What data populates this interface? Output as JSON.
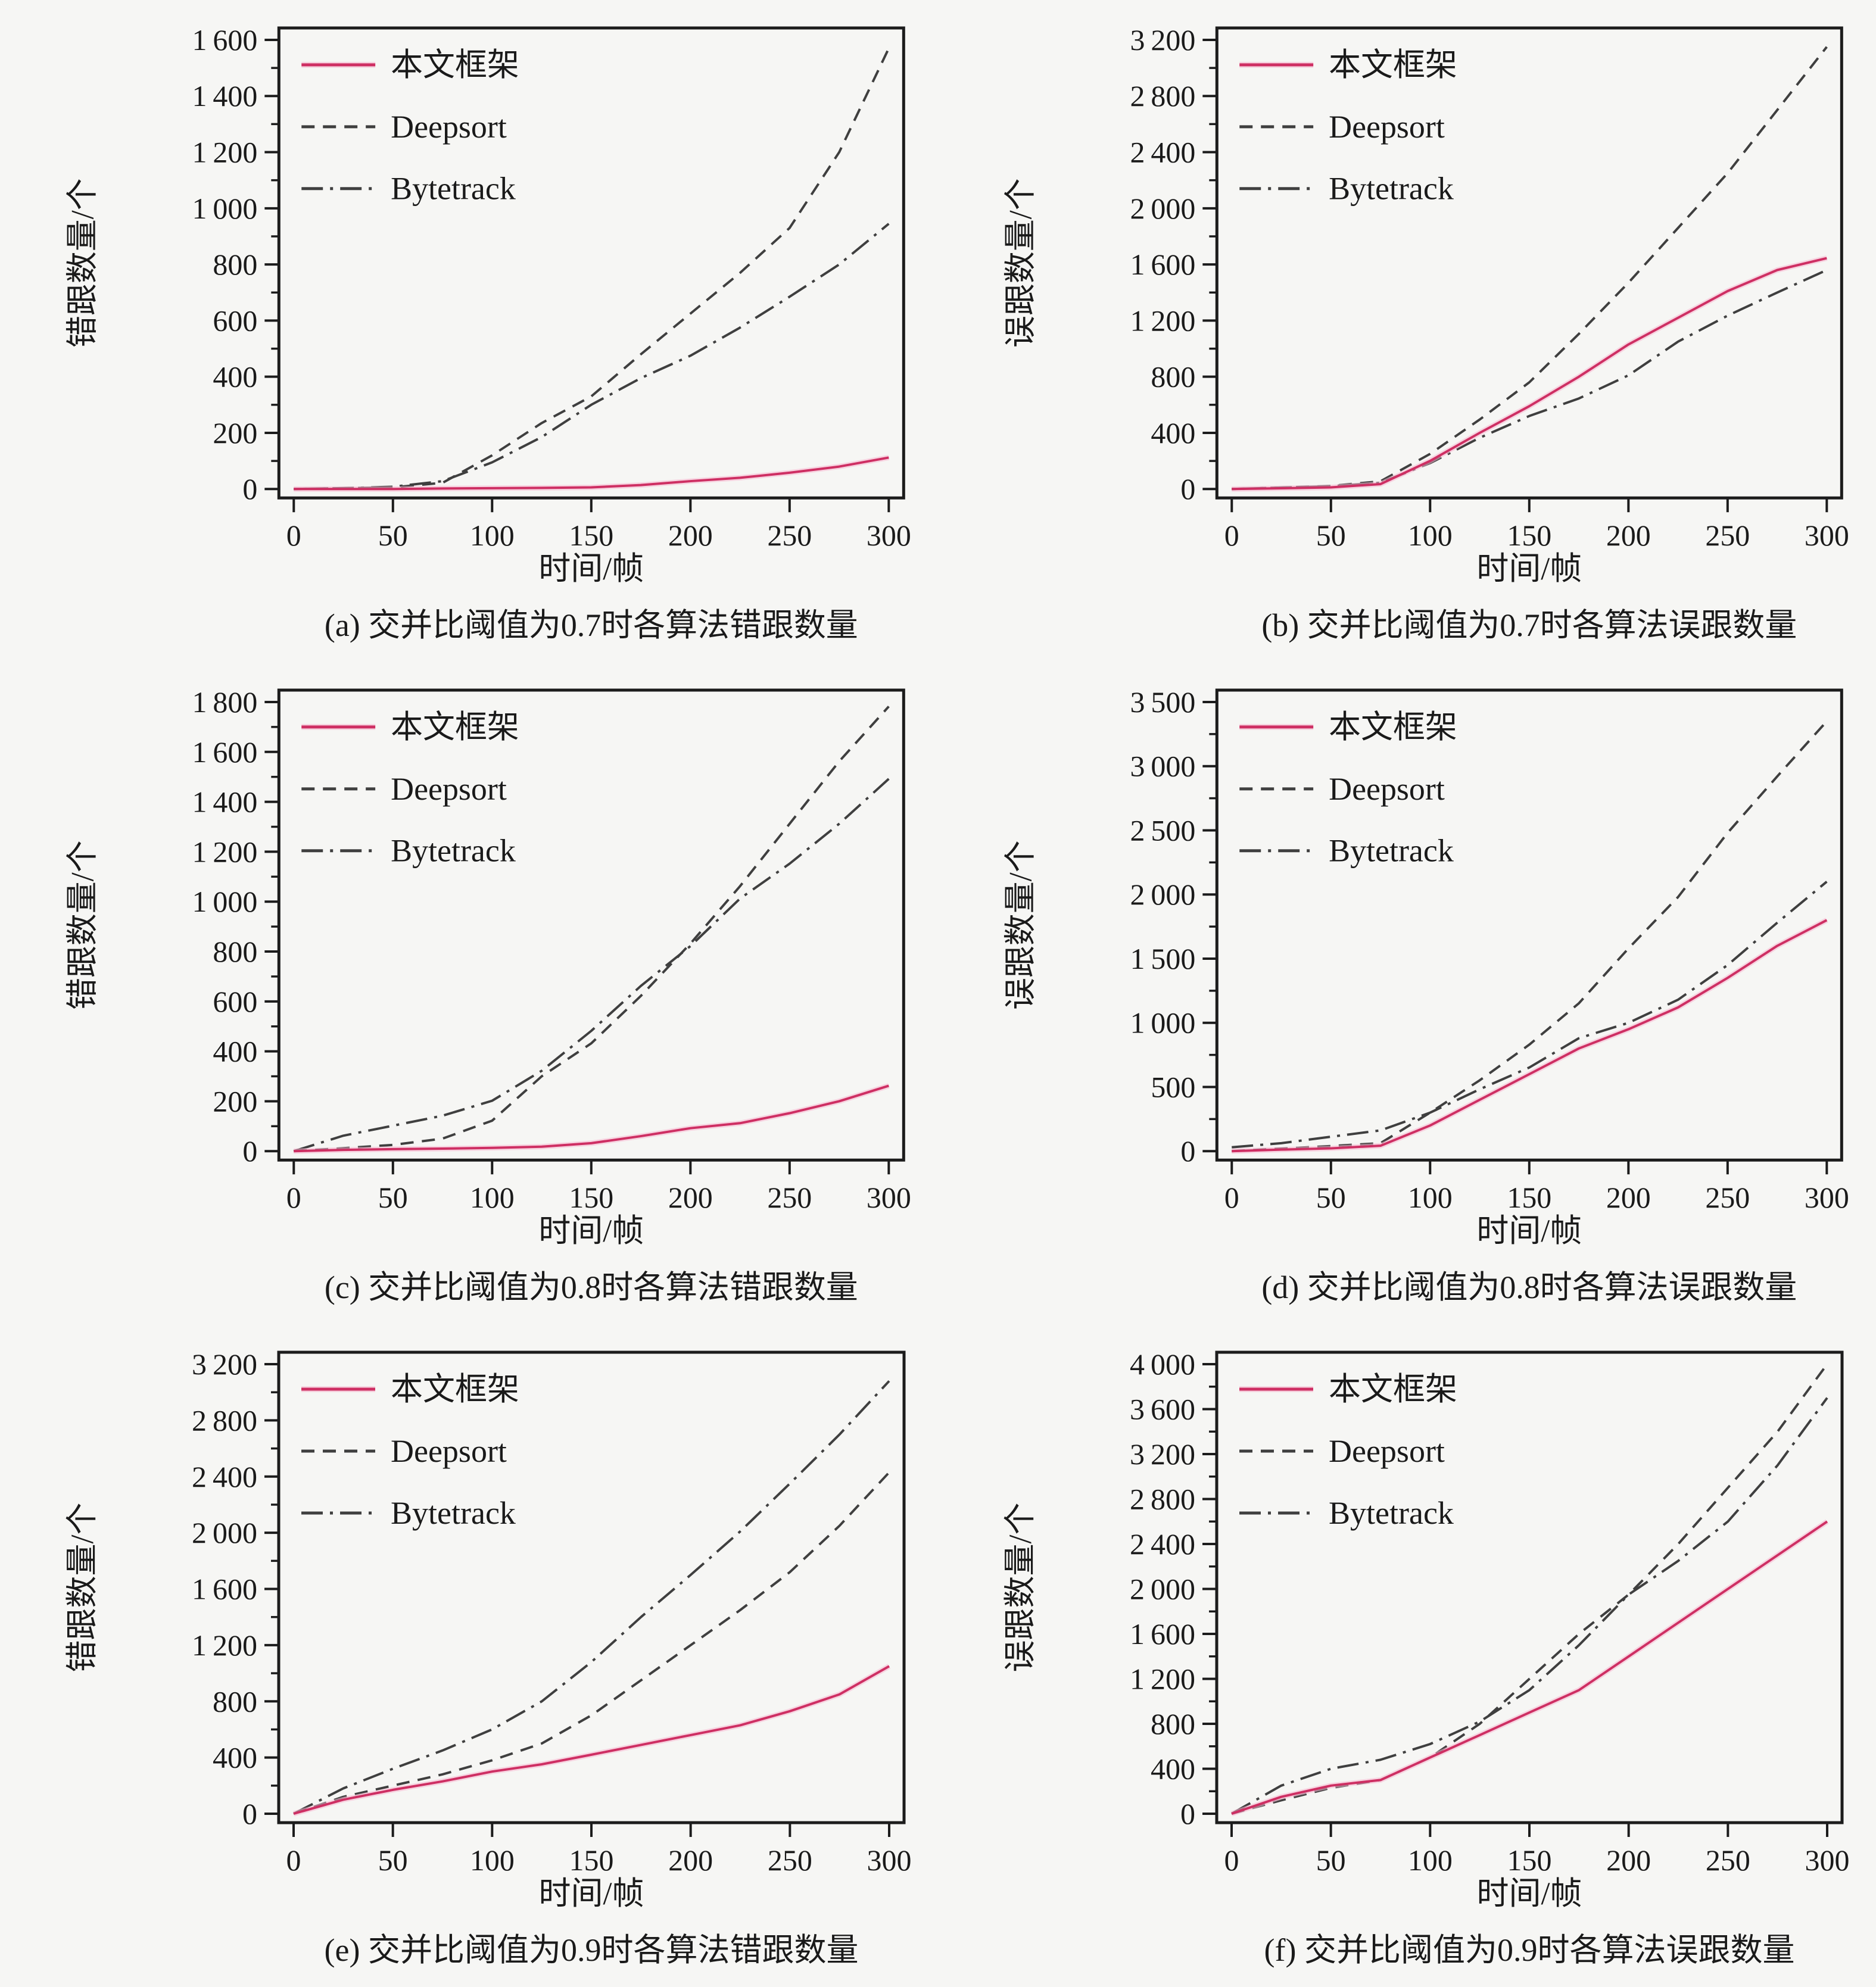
{
  "colors": {
    "background": "#f6f6f4",
    "axis": "#1c1c1c",
    "ours_line": "#ce2f63",
    "ours_halo": "#f7b7cf",
    "baseline_line": "#3f3f3f"
  },
  "chart_data": [
    {
      "id": "a",
      "type": "line",
      "caption": "(a) 交并比阈值为0.7时各算法错跟数量",
      "xlabel": "时间/帧",
      "ylabel": "错跟数量/个",
      "xlim": [
        0,
        300
      ],
      "xtick_step": 50,
      "ylim": [
        0,
        1600
      ],
      "ytick_step": 200,
      "grid": false,
      "legend_position": "top-left",
      "x": [
        0,
        25,
        50,
        75,
        100,
        125,
        150,
        175,
        200,
        225,
        250,
        275,
        300
      ],
      "series": [
        {
          "name": "本文框架",
          "style": "solid",
          "role": "ours",
          "values": [
            0,
            0,
            0,
            2,
            3,
            4,
            6,
            14,
            28,
            40,
            58,
            80,
            112
          ]
        },
        {
          "name": "Deepsort",
          "style": "dashed",
          "role": "baseline",
          "values": [
            0,
            3,
            6,
            22,
            120,
            235,
            330,
            480,
            625,
            770,
            930,
            1200,
            1570
          ]
        },
        {
          "name": "Bytetrack",
          "style": "dashdot",
          "role": "baseline",
          "values": [
            0,
            3,
            8,
            28,
            95,
            185,
            300,
            395,
            475,
            575,
            685,
            800,
            945
          ]
        }
      ]
    },
    {
      "id": "b",
      "type": "line",
      "caption": "(b) 交并比阈值为0.7时各算法误跟数量",
      "xlabel": "时间/帧",
      "ylabel": "误跟数量/个",
      "xlim": [
        0,
        300
      ],
      "xtick_step": 50,
      "ylim": [
        0,
        3200
      ],
      "ytick_step": 400,
      "grid": false,
      "legend_position": "top-left",
      "x": [
        0,
        25,
        50,
        75,
        100,
        125,
        150,
        175,
        200,
        225,
        250,
        275,
        300
      ],
      "series": [
        {
          "name": "本文框架",
          "style": "solid",
          "role": "ours",
          "values": [
            0,
            5,
            12,
            35,
            200,
            400,
            590,
            800,
            1030,
            1220,
            1410,
            1560,
            1645
          ]
        },
        {
          "name": "Deepsort",
          "style": "dashed",
          "role": "baseline",
          "values": [
            0,
            10,
            22,
            55,
            250,
            495,
            760,
            1105,
            1470,
            1860,
            2250,
            2700,
            3150
          ]
        },
        {
          "name": "Bytetrack",
          "style": "dashdot",
          "role": "baseline",
          "values": [
            0,
            10,
            20,
            45,
            185,
            365,
            520,
            645,
            810,
            1050,
            1235,
            1400,
            1560
          ]
        }
      ]
    },
    {
      "id": "c",
      "type": "line",
      "caption": "(c) 交并比阈值为0.8时各算法错跟数量",
      "xlabel": "时间/帧",
      "ylabel": "错跟数量/个",
      "xlim": [
        0,
        300
      ],
      "xtick_step": 50,
      "ylim": [
        0,
        1800
      ],
      "ytick_step": 200,
      "grid": false,
      "legend_position": "top-left",
      "x": [
        0,
        25,
        50,
        75,
        100,
        125,
        150,
        175,
        200,
        225,
        250,
        275,
        300
      ],
      "series": [
        {
          "name": "本文框架",
          "style": "solid",
          "role": "ours",
          "values": [
            0,
            5,
            8,
            10,
            13,
            18,
            32,
            60,
            92,
            112,
            152,
            200,
            262
          ]
        },
        {
          "name": "Deepsort",
          "style": "dashed",
          "role": "baseline",
          "values": [
            0,
            12,
            25,
            50,
            122,
            300,
            432,
            622,
            832,
            1062,
            1312,
            1562,
            1782
          ]
        },
        {
          "name": "Bytetrack",
          "style": "dashdot",
          "role": "baseline",
          "values": [
            0,
            62,
            102,
            142,
            202,
            322,
            482,
            662,
            822,
            1012,
            1152,
            1312,
            1492
          ]
        }
      ]
    },
    {
      "id": "d",
      "type": "line",
      "caption": "(d) 交并比阈值为0.8时各算法误跟数量",
      "xlabel": "时间/帧",
      "ylabel": "误跟数量/个",
      "xlim": [
        0,
        300
      ],
      "xtick_step": 50,
      "ylim": [
        0,
        3500
      ],
      "ytick_step": 500,
      "grid": false,
      "legend_position": "top-left",
      "x": [
        0,
        25,
        50,
        75,
        100,
        125,
        150,
        175,
        200,
        225,
        250,
        275,
        300
      ],
      "series": [
        {
          "name": "本文框架",
          "style": "solid",
          "role": "ours",
          "values": [
            0,
            12,
            22,
            42,
            200,
            400,
            600,
            800,
            950,
            1120,
            1350,
            1600,
            1800
          ]
        },
        {
          "name": "Deepsort",
          "style": "dashed",
          "role": "baseline",
          "values": [
            0,
            20,
            40,
            62,
            300,
            552,
            830,
            1152,
            1580,
            1980,
            2480,
            2920,
            3350
          ]
        },
        {
          "name": "Bytetrack",
          "style": "dashdot",
          "role": "baseline",
          "values": [
            30,
            62,
            112,
            162,
            300,
            482,
            652,
            880,
            1000,
            1180,
            1450,
            1780,
            2100
          ]
        }
      ]
    },
    {
      "id": "e",
      "type": "line",
      "caption": "(e) 交并比阈值为0.9时各算法错跟数量",
      "xlabel": "时间/帧",
      "ylabel": "错跟数量/个",
      "xlim": [
        0,
        300
      ],
      "xtick_step": 50,
      "ylim": [
        0,
        3200
      ],
      "ytick_step": 400,
      "grid": false,
      "legend_position": "top-left",
      "x": [
        0,
        25,
        50,
        75,
        100,
        125,
        150,
        175,
        200,
        225,
        250,
        275,
        300
      ],
      "series": [
        {
          "name": "本文框架",
          "style": "solid",
          "role": "ours",
          "values": [
            0,
            100,
            170,
            230,
            300,
            352,
            420,
            490,
            560,
            630,
            730,
            850,
            1050
          ]
        },
        {
          "name": "Deepsort",
          "style": "dashed",
          "role": "baseline",
          "values": [
            0,
            120,
            200,
            280,
            380,
            500,
            700,
            950,
            1200,
            1450,
            1720,
            2050,
            2430
          ]
        },
        {
          "name": "Bytetrack",
          "style": "dashdot",
          "role": "baseline",
          "values": [
            0,
            180,
            320,
            450,
            600,
            800,
            1080,
            1400,
            1700,
            2010,
            2350,
            2700,
            3080
          ]
        }
      ]
    },
    {
      "id": "f",
      "type": "line",
      "caption": "(f) 交并比阈值为0.9时各算法误跟数量",
      "xlabel": "时间/帧",
      "ylabel": "误跟数量/个",
      "xlim": [
        0,
        300
      ],
      "xtick_step": 50,
      "ylim": [
        0,
        4000
      ],
      "ytick_step": 400,
      "grid": false,
      "legend_position": "top-left",
      "x": [
        0,
        25,
        50,
        75,
        100,
        125,
        150,
        175,
        200,
        225,
        250,
        275,
        300
      ],
      "series": [
        {
          "name": "本文框架",
          "style": "solid",
          "role": "ours",
          "values": [
            0,
            150,
            250,
            300,
            500,
            700,
            900,
            1100,
            1400,
            1700,
            2000,
            2300,
            2600
          ]
        },
        {
          "name": "Deepsort",
          "style": "dashed",
          "role": "baseline",
          "values": [
            0,
            120,
            230,
            300,
            500,
            800,
            1200,
            1600,
            1950,
            2400,
            2900,
            3400,
            4000
          ]
        },
        {
          "name": "Bytetrack",
          "style": "dashdot",
          "role": "baseline",
          "values": [
            0,
            250,
            400,
            480,
            620,
            820,
            1100,
            1500,
            1950,
            2250,
            2600,
            3100,
            3700
          ]
        }
      ]
    }
  ]
}
